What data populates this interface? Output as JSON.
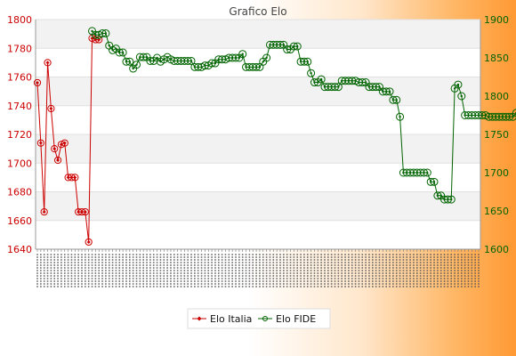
{
  "chart_data": {
    "type": "line",
    "title": "Grafico Elo",
    "legend": {
      "placement": "bottom-center"
    },
    "grid": true,
    "y_left": {
      "ylim": [
        1640,
        1800
      ],
      "ticks": [
        1640,
        1660,
        1680,
        1700,
        1720,
        1740,
        1760,
        1780,
        1800
      ],
      "color": "#cc0000"
    },
    "y_right": {
      "ylim": [
        1600,
        1900
      ],
      "ticks": [
        1600,
        1650,
        1700,
        1750,
        1800,
        1850,
        1900
      ],
      "color": "#006400"
    },
    "x_count": 130,
    "series": [
      {
        "name": "Elo Italia",
        "axis": "left",
        "color": "#cc0000",
        "marker": "diamond",
        "x": [
          1,
          2,
          3,
          4,
          5,
          6,
          7,
          8,
          9,
          10,
          11,
          12,
          13,
          14,
          15,
          16,
          17,
          18,
          19
        ],
        "values": [
          1756,
          1714,
          1666,
          1770,
          1738,
          1710,
          1702,
          1713,
          1714,
          1690,
          1690,
          1690,
          1666,
          1666,
          1666,
          1645,
          1787,
          1786,
          1786
        ]
      },
      {
        "name": "Elo FIDE",
        "axis": "right",
        "color": "#006400",
        "marker": "circle",
        "x_start": 17,
        "values": [
          1885,
          1880,
          1880,
          1882,
          1882,
          1866,
          1860,
          1862,
          1857,
          1857,
          1845,
          1845,
          1836,
          1841,
          1851,
          1851,
          1851,
          1846,
          1846,
          1850,
          1845,
          1848,
          1851,
          1848,
          1846,
          1846,
          1846,
          1846,
          1846,
          1846,
          1838,
          1838,
          1838,
          1840,
          1840,
          1843,
          1843,
          1848,
          1848,
          1848,
          1850,
          1850,
          1850,
          1850,
          1855,
          1838,
          1838,
          1838,
          1838,
          1838,
          1845,
          1850,
          1867,
          1867,
          1867,
          1867,
          1867,
          1861,
          1861,
          1865,
          1865,
          1845,
          1845,
          1845,
          1830,
          1818,
          1818,
          1822,
          1812,
          1812,
          1812,
          1812,
          1812,
          1820,
          1820,
          1820,
          1820,
          1820,
          1818,
          1818,
          1818,
          1812,
          1812,
          1812,
          1812,
          1806,
          1806,
          1806,
          1795,
          1795,
          1773,
          1700,
          1700,
          1700,
          1700,
          1700,
          1700,
          1700,
          1700,
          1688,
          1688,
          1670,
          1670,
          1665,
          1665,
          1665,
          1810,
          1815,
          1800,
          1775,
          1775,
          1775,
          1775,
          1775,
          1775,
          1775,
          1773,
          1773,
          1773,
          1773,
          1773,
          1773,
          1773,
          1773,
          1778
        ]
      }
    ]
  }
}
